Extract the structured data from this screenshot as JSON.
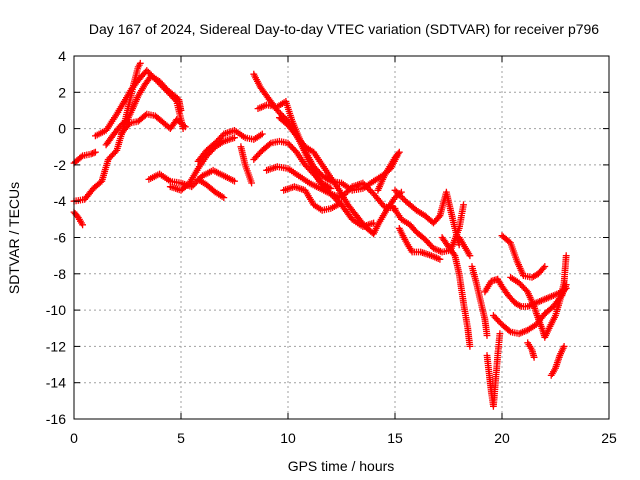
{
  "chart_data": {
    "type": "scatter",
    "title": "Day 167 of 2024, Sidereal Day-to-day VTEC variation (SDTVAR) for receiver p796",
    "xlabel": "GPS time / hours",
    "ylabel": "SDTVAR / TECUs",
    "xlim": [
      0,
      25
    ],
    "ylim": [
      -16,
      4
    ],
    "xticks": [
      0,
      5,
      10,
      15,
      20,
      25
    ],
    "yticks": [
      -16,
      -14,
      -12,
      -10,
      -8,
      -6,
      -4,
      -2,
      0,
      2,
      4
    ],
    "grid": true,
    "marker": "+",
    "series": [
      {
        "name": "p796 satellite tracks",
        "color": "#ff0000",
        "tracks": [
          [
            [
              0.0,
              -1.9
            ],
            [
              0.4,
              -1.5
            ],
            [
              0.8,
              -1.4
            ],
            [
              1.0,
              -1.3
            ]
          ],
          [
            [
              0.0,
              -4.6
            ],
            [
              0.2,
              -4.9
            ],
            [
              0.4,
              -5.3
            ]
          ],
          [
            [
              0.0,
              -4.0
            ],
            [
              0.5,
              -3.9
            ],
            [
              0.9,
              -3.3
            ],
            [
              1.3,
              -2.9
            ],
            [
              1.6,
              -1.7
            ],
            [
              2.0,
              -1.2
            ],
            [
              2.3,
              0.0
            ],
            [
              2.5,
              1.0
            ],
            [
              2.8,
              2.5
            ],
            [
              3.0,
              3.4
            ],
            [
              3.1,
              3.6
            ]
          ],
          [
            [
              1.0,
              -0.4
            ],
            [
              1.5,
              -0.1
            ],
            [
              2.0,
              0.8
            ],
            [
              2.4,
              1.6
            ],
            [
              2.7,
              2.2
            ],
            [
              3.1,
              2.8
            ],
            [
              3.4,
              3.2
            ],
            [
              3.9,
              2.6
            ],
            [
              4.4,
              2.0
            ],
            [
              4.8,
              1.5
            ],
            [
              5.1,
              0.0
            ]
          ],
          [
            [
              1.5,
              -0.9
            ],
            [
              1.8,
              -0.4
            ],
            [
              2.2,
              0.2
            ],
            [
              2.5,
              0.5
            ],
            [
              2.7,
              1.0
            ],
            [
              3.0,
              1.8
            ],
            [
              3.3,
              2.4
            ],
            [
              3.6,
              2.9
            ],
            [
              4.0,
              2.6
            ],
            [
              4.3,
              2.2
            ],
            [
              4.6,
              1.9
            ],
            [
              4.9,
              1.6
            ],
            [
              5.0,
              1.0
            ]
          ],
          [
            [
              2.2,
              -0.3
            ],
            [
              2.6,
              0.3
            ],
            [
              3.0,
              0.4
            ],
            [
              3.4,
              0.8
            ],
            [
              3.8,
              0.7
            ],
            [
              4.2,
              0.3
            ],
            [
              4.5,
              0.0
            ],
            [
              4.8,
              0.5
            ],
            [
              5.2,
              0.1
            ]
          ],
          [
            [
              3.5,
              -2.8
            ],
            [
              4.0,
              -2.5
            ],
            [
              4.5,
              -2.9
            ],
            [
              5.0,
              -3.0
            ],
            [
              5.5,
              -3.2
            ],
            [
              6.0,
              -2.6
            ],
            [
              6.5,
              -2.3
            ],
            [
              7.0,
              -2.6
            ],
            [
              7.5,
              -2.9
            ]
          ],
          [
            [
              4.5,
              -3.2
            ],
            [
              5.0,
              -3.4
            ],
            [
              5.4,
              -3.0
            ],
            [
              5.8,
              -2.2
            ],
            [
              6.2,
              -1.5
            ],
            [
              6.6,
              -1.0
            ],
            [
              7.0,
              -0.7
            ],
            [
              7.5,
              -0.5
            ]
          ],
          [
            [
              5.8,
              -2.8
            ],
            [
              6.2,
              -3.1
            ],
            [
              6.6,
              -3.5
            ],
            [
              7.0,
              -3.8
            ]
          ],
          [
            [
              5.8,
              -1.8
            ],
            [
              6.2,
              -1.2
            ],
            [
              6.6,
              -0.8
            ],
            [
              7.0,
              -0.3
            ],
            [
              7.5,
              -0.1
            ],
            [
              8.0,
              -0.5
            ],
            [
              8.4,
              -0.6
            ],
            [
              8.8,
              -0.3
            ]
          ],
          [
            [
              7.8,
              -1.0
            ],
            [
              8.0,
              -2.0
            ],
            [
              8.3,
              -3.0
            ]
          ],
          [
            [
              8.4,
              3.0
            ],
            [
              8.7,
              2.3
            ],
            [
              9.0,
              1.8
            ],
            [
              9.5,
              1.0
            ],
            [
              10.0,
              0.4
            ],
            [
              10.5,
              -0.6
            ],
            [
              11.0,
              -1.8
            ],
            [
              11.5,
              -3.0
            ],
            [
              12.0,
              -3.6
            ],
            [
              12.5,
              -3.8
            ],
            [
              13.0,
              -3.2
            ],
            [
              13.5,
              -3.0
            ],
            [
              14.0,
              -3.6
            ],
            [
              14.5,
              -4.3
            ],
            [
              15.0,
              -4.4
            ]
          ],
          [
            [
              8.6,
              1.1
            ],
            [
              9.0,
              1.3
            ],
            [
              9.5,
              1.2
            ],
            [
              9.9,
              1.5
            ],
            [
              10.2,
              0.4
            ],
            [
              10.7,
              -1.0
            ],
            [
              11.2,
              -2.1
            ],
            [
              11.6,
              -2.6
            ],
            [
              12.0,
              -2.9
            ],
            [
              12.5,
              -3.0
            ],
            [
              13.0,
              -3.4
            ],
            [
              13.5,
              -3.3
            ],
            [
              14.0,
              -2.9
            ],
            [
              14.4,
              -2.6
            ],
            [
              14.8,
              -2.2
            ],
            [
              15.1,
              -1.5
            ]
          ],
          [
            [
              8.4,
              -1.7
            ],
            [
              8.8,
              -1.2
            ],
            [
              9.2,
              -0.8
            ],
            [
              9.6,
              -0.7
            ],
            [
              10.0,
              -0.8
            ],
            [
              10.4,
              -1.3
            ],
            [
              10.8,
              -2.0
            ],
            [
              11.2,
              -2.5
            ],
            [
              11.6,
              -3.0
            ],
            [
              12.0,
              -3.3
            ]
          ],
          [
            [
              9.6,
              0.6
            ],
            [
              10.0,
              0.2
            ],
            [
              10.4,
              -0.4
            ],
            [
              10.8,
              -1.0
            ],
            [
              11.2,
              -1.3
            ],
            [
              11.6,
              -2.0
            ],
            [
              12.0,
              -2.7
            ],
            [
              12.4,
              -3.4
            ],
            [
              12.8,
              -4.2
            ],
            [
              13.2,
              -4.8
            ],
            [
              13.6,
              -5.4
            ],
            [
              14.0,
              -5.8
            ],
            [
              14.2,
              -5.3
            ],
            [
              14.6,
              -4.5
            ],
            [
              15.0,
              -3.8
            ],
            [
              15.3,
              -3.5
            ]
          ],
          [
            [
              9.0,
              -2.3
            ],
            [
              9.5,
              -2.1
            ],
            [
              10.0,
              -2.2
            ],
            [
              10.5,
              -2.6
            ],
            [
              11.0,
              -3.0
            ],
            [
              11.5,
              -3.3
            ],
            [
              12.0,
              -3.6
            ],
            [
              12.5,
              -4.2
            ],
            [
              13.0,
              -5.0
            ],
            [
              13.5,
              -5.4
            ],
            [
              14.0,
              -5.2
            ]
          ],
          [
            [
              9.8,
              -3.4
            ],
            [
              10.3,
              -3.2
            ],
            [
              10.8,
              -3.4
            ],
            [
              11.2,
              -4.2
            ],
            [
              11.6,
              -4.5
            ],
            [
              12.0,
              -4.4
            ],
            [
              12.5,
              -4.1
            ]
          ],
          [
            [
              14.2,
              -3.4
            ],
            [
              14.5,
              -2.6
            ],
            [
              14.8,
              -2.0
            ],
            [
              15.0,
              -1.6
            ],
            [
              15.2,
              -1.3
            ]
          ],
          [
            [
              14.9,
              -4.3
            ],
            [
              15.3,
              -5.0
            ],
            [
              15.7,
              -5.3
            ],
            [
              16.0,
              -5.7
            ],
            [
              16.4,
              -6.1
            ],
            [
              16.8,
              -6.6
            ],
            [
              17.2,
              -6.8
            ],
            [
              17.6,
              -6.7
            ],
            [
              18.0,
              -5.5
            ],
            [
              18.2,
              -4.2
            ]
          ],
          [
            [
              15.0,
              -3.4
            ],
            [
              15.5,
              -4.0
            ],
            [
              16.0,
              -4.5
            ],
            [
              16.4,
              -4.8
            ],
            [
              16.8,
              -5.2
            ],
            [
              17.1,
              -4.8
            ],
            [
              17.4,
              -3.5
            ],
            [
              17.6,
              -4.5
            ],
            [
              17.8,
              -5.5
            ],
            [
              18.0,
              -6.4
            ]
          ],
          [
            [
              15.2,
              -5.5
            ],
            [
              15.5,
              -6.2
            ],
            [
              15.8,
              -6.8
            ],
            [
              16.2,
              -6.8
            ],
            [
              16.7,
              -7.0
            ],
            [
              17.1,
              -7.2
            ]
          ],
          [
            [
              17.2,
              -6.0
            ],
            [
              17.5,
              -6.5
            ],
            [
              17.8,
              -7.0
            ],
            [
              18.0,
              -8.0
            ],
            [
              18.2,
              -9.6
            ],
            [
              18.4,
              -11.0
            ],
            [
              18.5,
              -12.0
            ]
          ],
          [
            [
              18.0,
              -6.0
            ],
            [
              18.3,
              -6.6
            ],
            [
              18.5,
              -7.0
            ]
          ],
          [
            [
              18.6,
              -7.6
            ],
            [
              18.8,
              -8.5
            ],
            [
              19.0,
              -9.5
            ],
            [
              19.2,
              -10.5
            ],
            [
              19.3,
              -11.4
            ]
          ],
          [
            [
              19.2,
              -9.0
            ],
            [
              19.5,
              -8.4
            ],
            [
              19.8,
              -8.3
            ],
            [
              20.0,
              -8.7
            ],
            [
              20.3,
              -9.2
            ],
            [
              20.6,
              -9.6
            ],
            [
              20.9,
              -9.8
            ],
            [
              21.2,
              -9.8
            ],
            [
              21.6,
              -9.6
            ],
            [
              22.0,
              -9.4
            ],
            [
              22.4,
              -9.2
            ],
            [
              22.8,
              -9.0
            ],
            [
              23.0,
              -8.8
            ]
          ],
          [
            [
              19.3,
              -12.5
            ],
            [
              19.4,
              -13.5
            ],
            [
              19.5,
              -14.5
            ],
            [
              19.6,
              -15.3
            ],
            [
              19.8,
              -12.5
            ],
            [
              19.9,
              -11.3
            ]
          ],
          [
            [
              19.6,
              -10.3
            ],
            [
              20.0,
              -10.8
            ],
            [
              20.4,
              -11.2
            ],
            [
              20.8,
              -11.3
            ],
            [
              21.2,
              -11.1
            ],
            [
              21.6,
              -10.8
            ],
            [
              22.0,
              -10.2
            ],
            [
              22.4,
              -9.8
            ],
            [
              22.8,
              -9.2
            ],
            [
              23.0,
              -8.6
            ]
          ],
          [
            [
              20.0,
              -5.9
            ],
            [
              20.4,
              -6.3
            ],
            [
              20.7,
              -7.3
            ],
            [
              21.0,
              -8.1
            ],
            [
              21.4,
              -8.2
            ],
            [
              21.7,
              -8.0
            ],
            [
              22.0,
              -7.6
            ]
          ],
          [
            [
              20.4,
              -8.2
            ],
            [
              20.8,
              -8.5
            ],
            [
              21.2,
              -9.0
            ],
            [
              21.5,
              -9.8
            ],
            [
              21.7,
              -10.5
            ],
            [
              21.9,
              -11.1
            ],
            [
              22.0,
              -11.5
            ],
            [
              22.2,
              -11.0
            ],
            [
              22.5,
              -10.3
            ],
            [
              22.7,
              -9.5
            ],
            [
              22.9,
              -8.5
            ],
            [
              23.0,
              -7.0
            ]
          ],
          [
            [
              22.3,
              -13.6
            ],
            [
              22.5,
              -13.2
            ],
            [
              22.7,
              -12.5
            ],
            [
              22.9,
              -12.0
            ]
          ],
          [
            [
              21.2,
              -11.8
            ],
            [
              21.4,
              -12.2
            ],
            [
              21.5,
              -12.6
            ]
          ]
        ]
      }
    ]
  }
}
